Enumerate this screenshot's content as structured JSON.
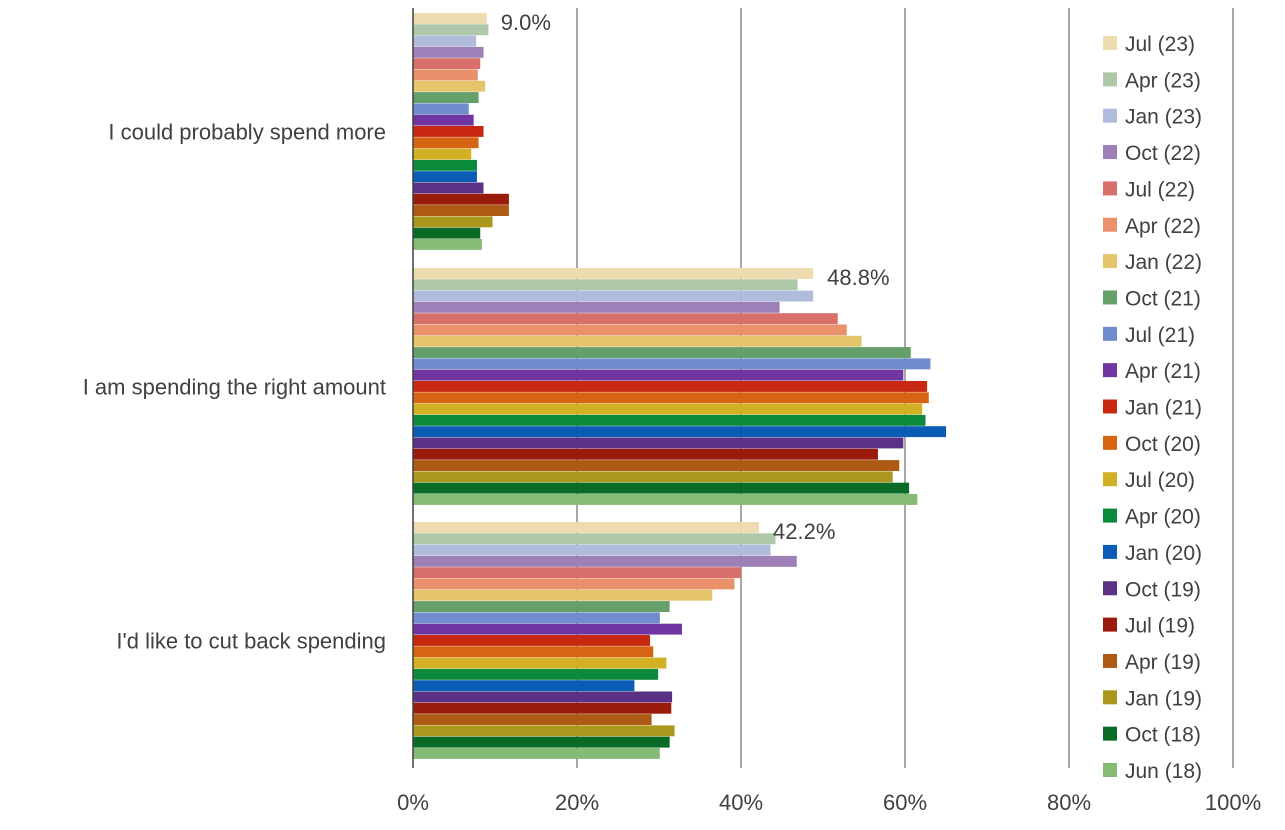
{
  "chart_data": {
    "type": "bar",
    "orientation": "horizontal",
    "categories": [
      "I could probably spend more",
      "I am spending the right amount",
      "I'd like to cut back spending"
    ],
    "xlim": [
      0,
      100
    ],
    "x_ticks": [
      "0%",
      "20%",
      "40%",
      "60%",
      "80%",
      "100%"
    ],
    "grid": true,
    "legend_position": "right",
    "series": [
      {
        "name": "Jul (23)",
        "color": "#ecdcaf",
        "values": [
          9.0,
          48.8,
          42.2
        ]
      },
      {
        "name": "Apr (23)",
        "color": "#aec8a9",
        "values": [
          9.2,
          46.9,
          44.2
        ]
      },
      {
        "name": "Jan (23)",
        "color": "#b0bcdc",
        "values": [
          7.7,
          48.8,
          43.6
        ]
      },
      {
        "name": "Oct (22)",
        "color": "#9e80b8",
        "values": [
          8.6,
          44.7,
          46.8
        ]
      },
      {
        "name": "Jul (22)",
        "color": "#d96f6a",
        "values": [
          8.2,
          51.8,
          40.0
        ]
      },
      {
        "name": "Apr (22)",
        "color": "#e8916b",
        "values": [
          7.9,
          52.9,
          39.2
        ]
      },
      {
        "name": "Jan (22)",
        "color": "#e5c56c",
        "values": [
          8.8,
          54.7,
          36.5
        ]
      },
      {
        "name": "Oct (21)",
        "color": "#65a06b",
        "values": [
          8.0,
          60.7,
          31.3
        ]
      },
      {
        "name": "Jul (21)",
        "color": "#6f8ccd",
        "values": [
          6.8,
          63.1,
          30.1
        ]
      },
      {
        "name": "Apr (21)",
        "color": "#7035a0",
        "values": [
          7.4,
          59.8,
          32.8
        ]
      },
      {
        "name": "Jan (21)",
        "color": "#c7280f",
        "values": [
          8.6,
          62.7,
          28.9
        ]
      },
      {
        "name": "Oct (20)",
        "color": "#d66413",
        "values": [
          8.0,
          62.9,
          29.3
        ]
      },
      {
        "name": "Jul (20)",
        "color": "#d1b023",
        "values": [
          7.1,
          62.1,
          30.9
        ]
      },
      {
        "name": "Apr (20)",
        "color": "#0b8a3c",
        "values": [
          7.8,
          62.5,
          29.9
        ]
      },
      {
        "name": "Jan (20)",
        "color": "#0b5cb4",
        "values": [
          7.8,
          65.0,
          27.0
        ]
      },
      {
        "name": "Oct (19)",
        "color": "#5b3185",
        "values": [
          8.6,
          59.8,
          31.6
        ]
      },
      {
        "name": "Jul (19)",
        "color": "#9a1b0c",
        "values": [
          11.7,
          56.7,
          31.5
        ]
      },
      {
        "name": "Apr (19)",
        "color": "#ad5a14",
        "values": [
          11.7,
          59.3,
          29.1
        ]
      },
      {
        "name": "Jan (19)",
        "color": "#ab971d",
        "values": [
          9.7,
          58.5,
          31.9
        ]
      },
      {
        "name": "Oct (18)",
        "color": "#096b26",
        "values": [
          8.2,
          60.5,
          31.3
        ]
      },
      {
        "name": "Jun (18)",
        "color": "#86bb76",
        "values": [
          8.4,
          61.5,
          30.1
        ]
      }
    ],
    "data_labels": [
      "9.0%",
      "48.8%",
      "42.2%"
    ]
  }
}
